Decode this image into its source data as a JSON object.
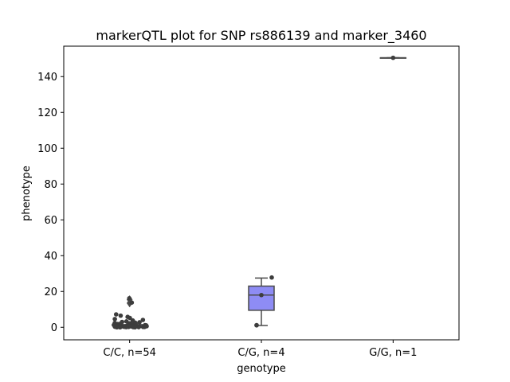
{
  "chart_data": {
    "type": "box",
    "title": "markerQTL plot for SNP rs886139 and marker_3460",
    "xlabel": "genotype",
    "ylabel": "phenotype",
    "categories": [
      "C/C, n=54",
      "C/G, n=4",
      "G/G, n=1"
    ],
    "ylim": [
      -7,
      157
    ],
    "yticks": [
      0,
      20,
      40,
      60,
      80,
      100,
      120,
      140
    ],
    "grid": false,
    "box_color": "#8e8cf5",
    "line_color": "#4a4a4a",
    "point_color": "#3d3d3d",
    "boxes": [
      {
        "category": "C/C, n=54",
        "q1": 0.3,
        "median": 0.8,
        "q3": 1.5,
        "whisker_low": 0.0,
        "whisker_high": 3.0,
        "outliers": [
          13.5,
          15.5
        ]
      },
      {
        "category": "C/G, n=4",
        "q1": 9.5,
        "median": 18.0,
        "q3": 23.0,
        "whisker_low": 1.0,
        "whisker_high": 27.5,
        "outliers": []
      },
      {
        "category": "G/G, n=1",
        "q1": 150.5,
        "median": 150.5,
        "q3": 150.5,
        "whisker_low": 150.5,
        "whisker_high": 150.5,
        "outliers": []
      }
    ],
    "points": [
      {
        "category": "C/C, n=54",
        "values": [
          16.2,
          13.8,
          7.2,
          6.5,
          5.8,
          5.2,
          4.6,
          4.1,
          3.8,
          3.3,
          3.0,
          2.8,
          2.6,
          2.4,
          2.2,
          2.0,
          1.9,
          1.8,
          1.6,
          1.5,
          1.4,
          1.3,
          1.2,
          1.1,
          1.0,
          1.0,
          0.9,
          0.9,
          0.8,
          0.8,
          0.7,
          0.7,
          0.6,
          0.6,
          0.5,
          0.5,
          0.5,
          0.4,
          0.4,
          0.4,
          0.3,
          0.3,
          0.3,
          0.2,
          0.2,
          0.2,
          0.2,
          0.1,
          0.1,
          0.1,
          0.1,
          0.0,
          0.0,
          0.0
        ]
      },
      {
        "category": "C/G, n=4",
        "values": [
          27.8,
          18.0,
          1.2,
          1.1
        ]
      },
      {
        "category": "G/G, n=1",
        "values": [
          150.5
        ]
      }
    ]
  }
}
